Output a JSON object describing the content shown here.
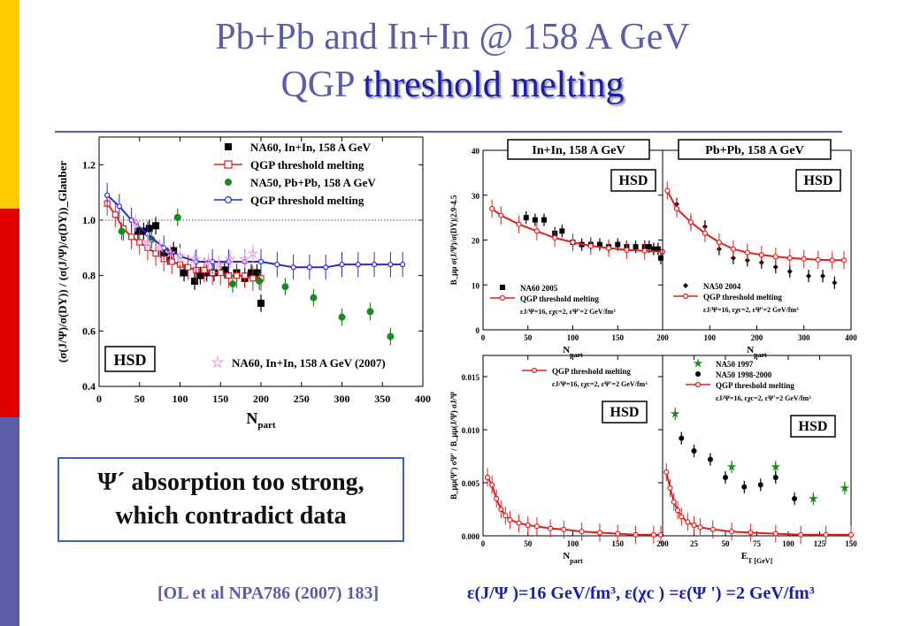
{
  "title": {
    "line1": "Pb+Pb and In+In @ 158 A GeV",
    "line2_prefix": "QGP",
    "line2_highlight": "threshold melting"
  },
  "colors": {
    "title": "#5b5ea6",
    "highlight": "#1a1ea8",
    "red": "#e02020",
    "green": "#1a8a1a",
    "blue": "#2a2ad0",
    "violet": "#e8a0e8",
    "stripe_yellow": "#ffcc00",
    "stripe_red": "#e00000",
    "stripe_blue": "#5b5ea6"
  },
  "callout": {
    "line1": "Ψ´ absorption too strong,",
    "line2": "which contradict data"
  },
  "footer": {
    "reference": "[OL et al NPA786 (2007) 183]",
    "epsilon": "ε(J/Ψ )=16  GeV/fm³, ε(χc ) =ε(Ψ ') =2 GeV/fm³"
  },
  "chart_data": [
    {
      "type": "scatter",
      "xlabel": "N_part",
      "ylabel": "(σ(J/Ψ)/σ(DY)) / (σ(J/Ψ)/σ(DY))_Glauber",
      "xlim": [
        0,
        400
      ],
      "ylim": [
        0.4,
        1.3
      ],
      "xticks": [
        0,
        50,
        100,
        150,
        200,
        250,
        300,
        350,
        400
      ],
      "yticks": [
        0.4,
        0.6,
        0.8,
        1.0,
        1.2
      ],
      "badge": "HSD",
      "reference_line": 1.0,
      "legend": [
        "NA60, In+In,   158 A GeV",
        "QGP threshold melting",
        "NA50, Pb+Pb, 158 A GeV",
        "QGP threshold melting"
      ],
      "legend2": "NA60, In+In, 158 A GeV (2007)",
      "series": [
        {
          "name": "NA60, In+In,   158 A GeV",
          "kind": "points",
          "marker": "square",
          "color": "#000000",
          "x": [
            48,
            55,
            62,
            70,
            78,
            85,
            92,
            105,
            118,
            125,
            133,
            142,
            155,
            170,
            180,
            188,
            195,
            200
          ],
          "y": [
            0.96,
            0.96,
            0.97,
            0.98,
            0.88,
            0.87,
            0.89,
            0.81,
            0.78,
            0.8,
            0.81,
            0.81,
            0.82,
            0.81,
            0.79,
            0.81,
            0.81,
            0.7
          ]
        },
        {
          "name": "QGP threshold melting",
          "kind": "line",
          "marker": "open-square",
          "color": "#e02020",
          "x": [
            10,
            20,
            30,
            40,
            50,
            60,
            70,
            80,
            90,
            100,
            110,
            120,
            130,
            140,
            150,
            160,
            170,
            180,
            190,
            200
          ],
          "y": [
            1.06,
            1.02,
            0.97,
            0.94,
            0.92,
            0.9,
            0.88,
            0.86,
            0.85,
            0.84,
            0.83,
            0.82,
            0.82,
            0.81,
            0.81,
            0.8,
            0.8,
            0.8,
            0.79,
            0.79
          ]
        },
        {
          "name": "NA50, Pb+Pb, 158 A GeV",
          "kind": "points",
          "marker": "circle",
          "color": "#1a8a1a",
          "x": [
            28,
            65,
            97,
            165,
            198,
            230,
            265,
            300,
            335,
            360
          ],
          "y": [
            0.96,
            0.93,
            1.01,
            0.77,
            0.78,
            0.76,
            0.72,
            0.65,
            0.67,
            0.58
          ]
        },
        {
          "name": "QGP threshold melting",
          "kind": "line",
          "marker": "open-circle",
          "color": "#2a2ad0",
          "x": [
            10,
            25,
            40,
            60,
            80,
            100,
            120,
            140,
            160,
            180,
            200,
            220,
            240,
            260,
            280,
            300,
            320,
            340,
            360,
            375
          ],
          "y": [
            1.09,
            1.05,
            1.0,
            0.95,
            0.9,
            0.87,
            0.85,
            0.85,
            0.85,
            0.85,
            0.85,
            0.84,
            0.83,
            0.83,
            0.83,
            0.84,
            0.84,
            0.84,
            0.84,
            0.84
          ]
        },
        {
          "name": "NA60, In+In, 158 A GeV (2007)",
          "kind": "points",
          "marker": "star",
          "color": "#e8a0e8",
          "x": [
            45,
            60,
            75,
            88,
            100,
            118,
            135,
            148,
            162,
            180,
            190
          ],
          "y": [
            0.99,
            0.92,
            0.9,
            0.88,
            0.87,
            0.86,
            0.85,
            0.84,
            0.86,
            0.86,
            0.88
          ]
        }
      ]
    },
    {
      "type": "scatter",
      "title": "In+In, 158 A GeV",
      "xlabel": "N_part",
      "ylabel": "B_μμ σ(J/Ψ)/σ(DY)|2.9-4.5",
      "xlim": [
        0,
        200
      ],
      "ylim": [
        0,
        40
      ],
      "xticks": [
        0,
        50,
        100,
        150,
        200
      ],
      "yticks": [
        0,
        10,
        20,
        30,
        40
      ],
      "badge": "HSD",
      "legend": [
        "NA60 2005",
        "QGP threshold melting",
        "εJ/Ψ=16, εχc=2, εΨ'=2 GeV/fm³"
      ],
      "series": [
        {
          "name": "NA60 2005",
          "kind": "points",
          "marker": "square",
          "color": "#000000",
          "x": [
            48,
            58,
            68,
            80,
            88,
            100,
            110,
            120,
            130,
            140,
            150,
            160,
            170,
            180,
            185,
            190,
            195,
            198
          ],
          "y": [
            25,
            24.5,
            24.5,
            21.5,
            22,
            19.5,
            19,
            19,
            19,
            18.5,
            19,
            18.5,
            18.5,
            18.5,
            18.5,
            18,
            18,
            16
          ]
        },
        {
          "name": "QGP threshold melting",
          "kind": "line",
          "marker": "open-circle",
          "color": "#e02020",
          "x": [
            10,
            20,
            40,
            60,
            80,
            100,
            120,
            140,
            160,
            180,
            200
          ],
          "y": [
            27,
            25.5,
            23.5,
            22,
            20.5,
            19.5,
            18.7,
            18.2,
            17.8,
            17.6,
            17.4
          ]
        }
      ]
    },
    {
      "type": "scatter",
      "title": "Pb+Pb, 158 A GeV",
      "xlabel": "N_part",
      "xlim": [
        0,
        400
      ],
      "ylim": [
        0,
        40
      ],
      "xticks": [
        100,
        200,
        300,
        400
      ],
      "badge": "HSD",
      "legend": [
        "NA50 2004",
        "QGP threshold melting",
        "εJ/Ψ=16, εχc=2, εΨ'=2 GeV/fm³"
      ],
      "series": [
        {
          "name": "NA50 2004",
          "kind": "points",
          "marker": "diamond",
          "color": "#000000",
          "x": [
            30,
            60,
            90,
            120,
            150,
            180,
            210,
            240,
            270,
            310,
            340,
            365
          ],
          "y": [
            28,
            24,
            23,
            18,
            16,
            15.5,
            15,
            14,
            13,
            12,
            12,
            10.5
          ]
        },
        {
          "name": "QGP threshold melting",
          "kind": "line",
          "marker": "open-circle",
          "color": "#e02020",
          "x": [
            10,
            30,
            60,
            90,
            120,
            150,
            180,
            210,
            240,
            270,
            300,
            330,
            360,
            385
          ],
          "y": [
            31,
            27,
            24,
            21.5,
            19.5,
            18,
            17.2,
            16.7,
            16.3,
            16,
            15.8,
            15.6,
            15.5,
            15.5
          ]
        }
      ]
    },
    {
      "type": "line",
      "xlabel": "N_part",
      "ylabel": "B_μμ(Ψ') σΨ' / B_μμ(J/Ψ) σJ/Ψ",
      "xlim": [
        0,
        200
      ],
      "ylim": [
        0,
        0.017
      ],
      "xticks": [
        0,
        50,
        100,
        150,
        200
      ],
      "yticks": [
        0.0,
        0.005,
        0.01,
        0.015
      ],
      "badge": "HSD",
      "legend": [
        "QGP threshold melting",
        "εJ/Ψ=16, εχc=2, εΨ'=2 GeV/fm³"
      ],
      "series": [
        {
          "name": "QGP threshold melting",
          "kind": "line",
          "marker": "open-circle",
          "color": "#e02020",
          "x": [
            5,
            10,
            15,
            20,
            25,
            30,
            40,
            50,
            60,
            75,
            90,
            110,
            130,
            150,
            170,
            190,
            198
          ],
          "y": [
            0.0055,
            0.0048,
            0.0035,
            0.0025,
            0.0019,
            0.0015,
            0.0012,
            0.001,
            0.0009,
            0.0007,
            0.0006,
            0.0004,
            0.0003,
            0.0002,
            0.0001,
            0.0001,
            0.0001
          ]
        }
      ]
    },
    {
      "type": "scatter",
      "xlabel": "E_T [GeV]",
      "xlim": [
        0,
        150
      ],
      "ylim": [
        0,
        0.017
      ],
      "xticks": [
        0,
        25,
        50,
        75,
        100,
        125,
        150
      ],
      "badge": "HSD",
      "legend": [
        "NA50 1997",
        "NA50 1998-2000",
        "QGP threshold melting",
        "εJ/Ψ=16, εχc=2, εΨ'=2 GeV/fm³"
      ],
      "series": [
        {
          "name": "NA50 1997",
          "kind": "points",
          "marker": "star",
          "color": "#1a8a1a",
          "x": [
            10,
            55,
            90,
            120,
            145
          ],
          "y": [
            0.0115,
            0.0065,
            0.0065,
            0.0035,
            0.0045
          ]
        },
        {
          "name": "NA50 1998-2000",
          "kind": "points",
          "marker": "circle",
          "color": "#000000",
          "x": [
            15,
            25,
            38,
            50,
            65,
            78,
            90,
            105
          ],
          "y": [
            0.0092,
            0.008,
            0.0072,
            0.0055,
            0.0046,
            0.0048,
            0.0055,
            0.0035
          ]
        },
        {
          "name": "QGP threshold melting",
          "kind": "line",
          "marker": "open-circle",
          "color": "#e02020",
          "x": [
            3,
            6,
            9,
            12,
            15,
            20,
            25,
            30,
            40,
            55,
            70,
            90,
            110,
            130,
            150
          ],
          "y": [
            0.006,
            0.0045,
            0.0032,
            0.0024,
            0.0018,
            0.0013,
            0.001,
            0.0008,
            0.0006,
            0.0004,
            0.0003,
            0.0002,
            0.0001,
            0.0001,
            0.0001
          ]
        }
      ]
    }
  ]
}
